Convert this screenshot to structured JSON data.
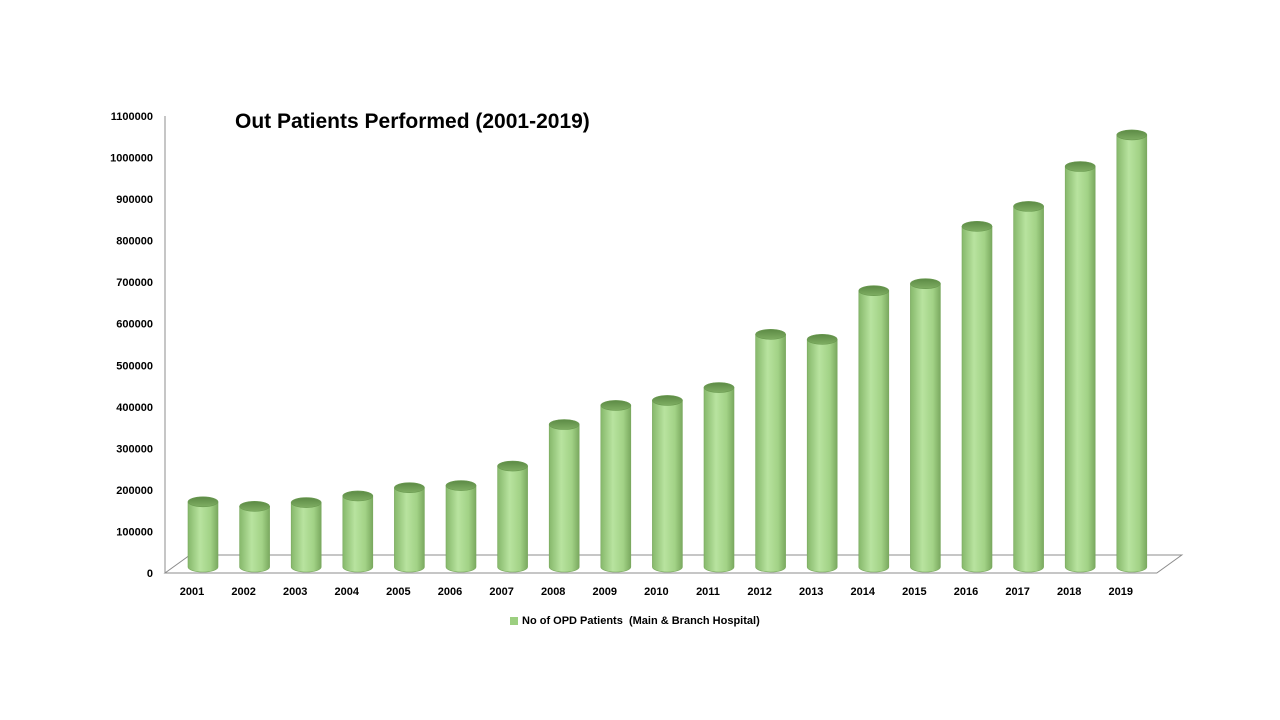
{
  "chart_data": {
    "type": "bar",
    "title": "Out Patients Performed (2001-2019)",
    "xlabel": "",
    "ylabel": "",
    "categories": [
      "2001",
      "2002",
      "2003",
      "2004",
      "2005",
      "2006",
      "2007",
      "2008",
      "2009",
      "2010",
      "2011",
      "2012",
      "2013",
      "2014",
      "2015",
      "2016",
      "2017",
      "2018",
      "2019"
    ],
    "series": [
      {
        "name": "No of OPD Patients  (Main & Branch Hospital)",
        "values": [
          157000,
          146000,
          155000,
          171000,
          191000,
          196000,
          243000,
          343000,
          389000,
          401000,
          432000,
          560000,
          548000,
          665000,
          682000,
          820000,
          868000,
          964000,
          1040000
        ]
      }
    ],
    "ylim": [
      0,
      1100000
    ],
    "yticks": [
      "0",
      "100000",
      "200000",
      "300000",
      "400000",
      "500000",
      "600000",
      "700000",
      "800000",
      "900000",
      "1000000",
      "1100000"
    ],
    "grid": false,
    "legend": "bottom",
    "bar_shape": "cylinder-3d",
    "colors": {
      "bar": "#9ccf80",
      "bar_top": "#6f9e55",
      "axis": "#8c8c8c"
    }
  }
}
